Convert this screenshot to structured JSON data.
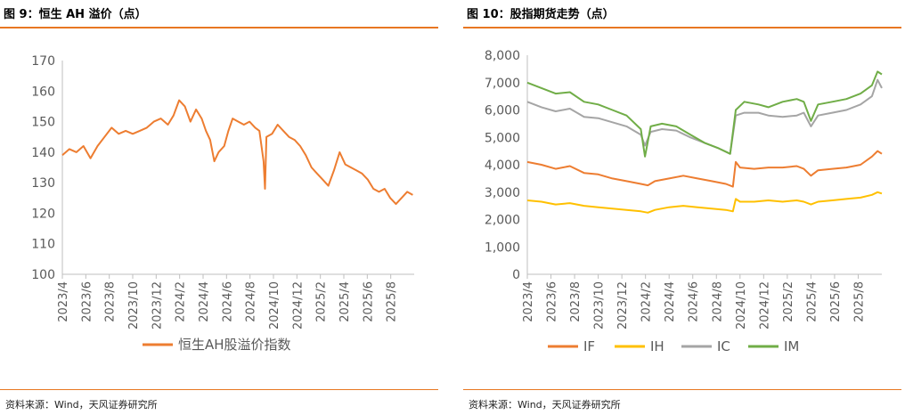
{
  "charts": {
    "left": {
      "figure_title": "图 9：恒生 AH 溢价（点）",
      "source": "资料来源：Wind，天风证券研究所"
    },
    "right": {
      "figure_title": "图 10：股指期货走势（点）",
      "source": "资料来源：Wind，天风证券研究所"
    }
  },
  "chart_data": [
    {
      "type": "line",
      "title": "",
      "xlabel": "",
      "ylabel": "",
      "ylim": [
        100,
        170
      ],
      "yticks": [
        "100",
        "110",
        "120",
        "130",
        "140",
        "150",
        "160",
        "170"
      ],
      "x_ticks": [
        "2023/4",
        "2023/6",
        "2023/8",
        "2023/10",
        "2023/12",
        "2024/2",
        "2024/4",
        "2024/6",
        "2024/8",
        "2024/10",
        "2024/12",
        "2025/2",
        "2025/4",
        "2025/6",
        "2025/8"
      ],
      "x_range": [
        2023.25,
        2025.75
      ],
      "legend_position": "bottom",
      "series": [
        {
          "name": "恒生AH股溢价指数",
          "color": "#ED7D31",
          "points": [
            [
              2023.25,
              139
            ],
            [
              2023.3,
              141
            ],
            [
              2023.35,
              140
            ],
            [
              2023.4,
              142
            ],
            [
              2023.45,
              138
            ],
            [
              2023.5,
              142
            ],
            [
              2023.55,
              145
            ],
            [
              2023.6,
              148
            ],
            [
              2023.65,
              146
            ],
            [
              2023.7,
              147
            ],
            [
              2023.75,
              146
            ],
            [
              2023.8,
              147
            ],
            [
              2023.85,
              148
            ],
            [
              2023.9,
              150
            ],
            [
              2023.95,
              151
            ],
            [
              2024.0,
              149
            ],
            [
              2024.04,
              152
            ],
            [
              2024.08,
              157
            ],
            [
              2024.12,
              155
            ],
            [
              2024.16,
              150
            ],
            [
              2024.2,
              154
            ],
            [
              2024.24,
              151
            ],
            [
              2024.27,
              147
            ],
            [
              2024.3,
              144
            ],
            [
              2024.33,
              137
            ],
            [
              2024.36,
              140
            ],
            [
              2024.4,
              142
            ],
            [
              2024.43,
              147
            ],
            [
              2024.46,
              151
            ],
            [
              2024.5,
              150
            ],
            [
              2024.54,
              149
            ],
            [
              2024.58,
              150
            ],
            [
              2024.62,
              148
            ],
            [
              2024.65,
              147
            ],
            [
              2024.68,
              137
            ],
            [
              2024.69,
              128
            ],
            [
              2024.7,
              145
            ],
            [
              2024.74,
              146
            ],
            [
              2024.78,
              149
            ],
            [
              2024.82,
              147
            ],
            [
              2024.86,
              145
            ],
            [
              2024.9,
              144
            ],
            [
              2024.94,
              142
            ],
            [
              2024.98,
              139
            ],
            [
              2025.02,
              135
            ],
            [
              2025.06,
              133
            ],
            [
              2025.1,
              131
            ],
            [
              2025.14,
              129
            ],
            [
              2025.18,
              134
            ],
            [
              2025.22,
              140
            ],
            [
              2025.26,
              136
            ],
            [
              2025.3,
              135
            ],
            [
              2025.34,
              134
            ],
            [
              2025.38,
              133
            ],
            [
              2025.42,
              131
            ],
            [
              2025.46,
              128
            ],
            [
              2025.5,
              127
            ],
            [
              2025.54,
              128
            ],
            [
              2025.58,
              125
            ],
            [
              2025.62,
              123
            ],
            [
              2025.66,
              125
            ],
            [
              2025.7,
              127
            ],
            [
              2025.74,
              126
            ]
          ]
        }
      ]
    },
    {
      "type": "line",
      "title": "",
      "xlabel": "",
      "ylabel": "",
      "ylim": [
        0,
        8000
      ],
      "yticks": [
        "0",
        "1,000",
        "2,000",
        "3,000",
        "4,000",
        "5,000",
        "6,000",
        "7,000",
        "8,000"
      ],
      "x_ticks": [
        "2023/4",
        "2023/6",
        "2023/8",
        "2023/10",
        "2023/12",
        "2024/2",
        "2024/4",
        "2024/6",
        "2024/8",
        "2024/10",
        "2024/12",
        "2025/2",
        "2025/4",
        "2025/6",
        "2025/8"
      ],
      "x_range": [
        2023.25,
        2025.75
      ],
      "legend_position": "bottom",
      "series": [
        {
          "name": "IF",
          "color": "#ED7D31",
          "points": [
            [
              2023.25,
              4100
            ],
            [
              2023.35,
              4000
            ],
            [
              2023.45,
              3850
            ],
            [
              2023.55,
              3950
            ],
            [
              2023.65,
              3700
            ],
            [
              2023.75,
              3650
            ],
            [
              2023.85,
              3500
            ],
            [
              2023.95,
              3400
            ],
            [
              2024.05,
              3300
            ],
            [
              2024.1,
              3250
            ],
            [
              2024.15,
              3400
            ],
            [
              2024.25,
              3500
            ],
            [
              2024.35,
              3600
            ],
            [
              2024.45,
              3500
            ],
            [
              2024.55,
              3400
            ],
            [
              2024.65,
              3300
            ],
            [
              2024.7,
              3200
            ],
            [
              2024.72,
              4100
            ],
            [
              2024.75,
              3900
            ],
            [
              2024.85,
              3850
            ],
            [
              2024.95,
              3900
            ],
            [
              2025.05,
              3900
            ],
            [
              2025.15,
              3950
            ],
            [
              2025.2,
              3850
            ],
            [
              2025.25,
              3600
            ],
            [
              2025.3,
              3800
            ],
            [
              2025.4,
              3850
            ],
            [
              2025.5,
              3900
            ],
            [
              2025.6,
              4000
            ],
            [
              2025.68,
              4300
            ],
            [
              2025.72,
              4500
            ],
            [
              2025.75,
              4400
            ]
          ]
        },
        {
          "name": "IH",
          "color": "#FFC000",
          "points": [
            [
              2023.25,
              2700
            ],
            [
              2023.35,
              2650
            ],
            [
              2023.45,
              2550
            ],
            [
              2023.55,
              2600
            ],
            [
              2023.65,
              2500
            ],
            [
              2023.75,
              2450
            ],
            [
              2023.85,
              2400
            ],
            [
              2023.95,
              2350
            ],
            [
              2024.05,
              2300
            ],
            [
              2024.1,
              2250
            ],
            [
              2024.15,
              2350
            ],
            [
              2024.25,
              2450
            ],
            [
              2024.35,
              2500
            ],
            [
              2024.45,
              2450
            ],
            [
              2024.55,
              2400
            ],
            [
              2024.65,
              2350
            ],
            [
              2024.7,
              2300
            ],
            [
              2024.72,
              2750
            ],
            [
              2024.75,
              2650
            ],
            [
              2024.85,
              2650
            ],
            [
              2024.95,
              2700
            ],
            [
              2025.05,
              2650
            ],
            [
              2025.15,
              2700
            ],
            [
              2025.2,
              2650
            ],
            [
              2025.25,
              2550
            ],
            [
              2025.3,
              2650
            ],
            [
              2025.4,
              2700
            ],
            [
              2025.5,
              2750
            ],
            [
              2025.6,
              2800
            ],
            [
              2025.68,
              2900
            ],
            [
              2025.72,
              3000
            ],
            [
              2025.75,
              2950
            ]
          ]
        },
        {
          "name": "IC",
          "color": "#A5A5A5",
          "points": [
            [
              2023.25,
              6300
            ],
            [
              2023.35,
              6100
            ],
            [
              2023.45,
              5950
            ],
            [
              2023.55,
              6050
            ],
            [
              2023.65,
              5750
            ],
            [
              2023.75,
              5700
            ],
            [
              2023.85,
              5550
            ],
            [
              2023.95,
              5400
            ],
            [
              2024.05,
              5100
            ],
            [
              2024.08,
              4700
            ],
            [
              2024.12,
              5200
            ],
            [
              2024.2,
              5300
            ],
            [
              2024.3,
              5250
            ],
            [
              2024.4,
              5000
            ],
            [
              2024.5,
              4800
            ],
            [
              2024.6,
              4600
            ],
            [
              2024.68,
              4400
            ],
            [
              2024.72,
              5800
            ],
            [
              2024.78,
              5900
            ],
            [
              2024.88,
              5900
            ],
            [
              2024.95,
              5800
            ],
            [
              2025.05,
              5750
            ],
            [
              2025.15,
              5800
            ],
            [
              2025.2,
              5900
            ],
            [
              2025.25,
              5400
            ],
            [
              2025.3,
              5800
            ],
            [
              2025.4,
              5900
            ],
            [
              2025.5,
              6000
            ],
            [
              2025.6,
              6200
            ],
            [
              2025.68,
              6500
            ],
            [
              2025.72,
              7100
            ],
            [
              2025.75,
              6800
            ]
          ]
        },
        {
          "name": "IM",
          "color": "#70AD47",
          "points": [
            [
              2023.25,
              7000
            ],
            [
              2023.35,
              6800
            ],
            [
              2023.45,
              6600
            ],
            [
              2023.55,
              6650
            ],
            [
              2023.65,
              6300
            ],
            [
              2023.75,
              6200
            ],
            [
              2023.85,
              6000
            ],
            [
              2023.95,
              5800
            ],
            [
              2024.05,
              5300
            ],
            [
              2024.08,
              4300
            ],
            [
              2024.12,
              5400
            ],
            [
              2024.2,
              5500
            ],
            [
              2024.3,
              5400
            ],
            [
              2024.4,
              5100
            ],
            [
              2024.5,
              4800
            ],
            [
              2024.6,
              4600
            ],
            [
              2024.68,
              4400
            ],
            [
              2024.72,
              6000
            ],
            [
              2024.78,
              6300
            ],
            [
              2024.88,
              6200
            ],
            [
              2024.95,
              6100
            ],
            [
              2025.05,
              6300
            ],
            [
              2025.15,
              6400
            ],
            [
              2025.2,
              6300
            ],
            [
              2025.25,
              5600
            ],
            [
              2025.3,
              6200
            ],
            [
              2025.4,
              6300
            ],
            [
              2025.5,
              6400
            ],
            [
              2025.6,
              6600
            ],
            [
              2025.68,
              6900
            ],
            [
              2025.72,
              7400
            ],
            [
              2025.75,
              7300
            ]
          ]
        }
      ]
    }
  ]
}
